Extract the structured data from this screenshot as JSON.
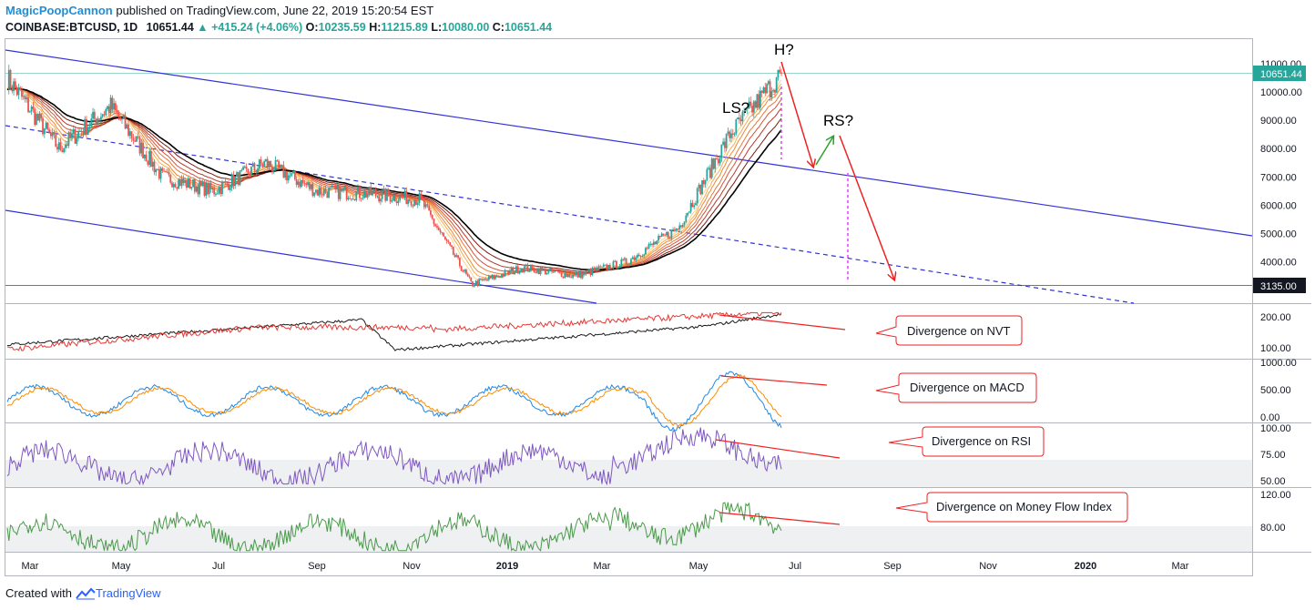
{
  "header": {
    "author": "MagicPoopCannon",
    "published": "published on TradingView.com, June 22, 2019 15:20:54 EST"
  },
  "ohlc": {
    "symbol": "COINBASE:BTCUSD, 1D",
    "last": "10651.44",
    "change": "▲ +415.24 (+4.06%)",
    "o_label": "O:",
    "o": "10235.59",
    "h_label": "H:",
    "h": "11215.89",
    "l_label": "L:",
    "l": "10080.00",
    "c_label": "C:",
    "c": "10651.44"
  },
  "footer": {
    "created_with": "Created with",
    "brand": "TradingView"
  },
  "colors": {
    "up": "#26a69a",
    "down": "#ef5350",
    "channel": "#3232d6",
    "annotation": "#ee2222",
    "green_arrow": "#2ca02c",
    "rsi": "#7e57c2",
    "mfi": "#4a9a4a"
  },
  "annotations": {
    "head": "H?",
    "left_shoulder": "LS?",
    "right_shoulder": "RS?",
    "nvt": "Divergence on NVT",
    "macd": "Divergence on MACD",
    "rsi": "Divergence on RSI",
    "mfi": "Divergence on Money Flow Index"
  },
  "chart_data": [
    {
      "type": "line",
      "name": "price",
      "x_ticks": [
        "Mar",
        "May",
        "Jul",
        "Sep",
        "Nov",
        "2019",
        "Mar",
        "May",
        "Jul",
        "Sep",
        "Nov",
        "2020",
        "Mar"
      ],
      "y_ticks": [
        "11000.00",
        "10000.00",
        "9000.00",
        "8000.00",
        "7000.00",
        "6000.00",
        "5000.00",
        "4000.00"
      ],
      "last_price_label": "10651.44",
      "level_label": "3135.00",
      "x": [
        "2018-03",
        "2018-04",
        "2018-05",
        "2018-06",
        "2018-07",
        "2018-08",
        "2018-09",
        "2018-10",
        "2018-11",
        "2018-12",
        "2019-01",
        "2019-02",
        "2019-03",
        "2019-04",
        "2019-05",
        "2019-06"
      ],
      "y": [
        10500,
        8000,
        9500,
        7000,
        6500,
        7500,
        6500,
        6400,
        6200,
        3200,
        3800,
        3500,
        4000,
        5200,
        8500,
        10651.44
      ]
    },
    {
      "type": "line",
      "name": "NVT",
      "y_ticks": [
        "200.00",
        "100.00"
      ]
    },
    {
      "type": "line",
      "name": "MACD",
      "y_ticks": [
        "1000.00",
        "500.00",
        "0.00"
      ]
    },
    {
      "type": "line",
      "name": "RSI",
      "y_ticks": [
        "100.00",
        "75.00",
        "50.00"
      ]
    },
    {
      "type": "line",
      "name": "MFI",
      "y_ticks": [
        "120.00",
        "80.00"
      ]
    }
  ]
}
